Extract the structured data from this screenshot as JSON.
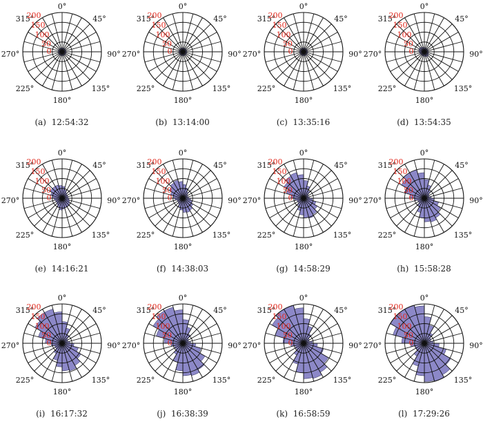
{
  "chart_data": {
    "type": "polar-rose",
    "angle_tick_labels": [
      "0°",
      "45°",
      "90°",
      "135°",
      "180°",
      "225°",
      "270°",
      "315°"
    ],
    "radial_tick_labels": [
      "0",
      "50",
      "100",
      "150",
      "200"
    ],
    "rlim": [
      0,
      200
    ],
    "angle_step_deg": 15,
    "colors": {
      "fill": "#8c88c8",
      "edge": "#2a2a55",
      "grid": "#111111",
      "radial_label": "#e0281c"
    },
    "panels": [
      {
        "label": "(a)",
        "time": "12:54:32",
        "lengths": [
          20,
          20,
          20,
          20,
          20,
          20,
          20,
          20,
          20,
          20,
          20,
          20,
          20,
          20,
          20,
          20,
          20,
          20,
          20,
          20,
          20,
          20,
          20,
          20
        ]
      },
      {
        "label": "(b)",
        "time": "13:14:00",
        "lengths": [
          20,
          20,
          20,
          20,
          20,
          20,
          20,
          20,
          20,
          20,
          20,
          20,
          20,
          20,
          20,
          20,
          20,
          20,
          20,
          20,
          20,
          20,
          20,
          20
        ]
      },
      {
        "label": "(c)",
        "time": "13:35:16",
        "lengths": [
          20,
          20,
          20,
          20,
          20,
          20,
          20,
          20,
          20,
          20,
          20,
          20,
          20,
          20,
          20,
          20,
          20,
          20,
          20,
          20,
          20,
          20,
          20,
          20
        ]
      },
      {
        "label": "(d)",
        "time": "13:54:35",
        "lengths": [
          22,
          20,
          20,
          20,
          20,
          20,
          20,
          22,
          25,
          28,
          26,
          24,
          22,
          22,
          22,
          22,
          24,
          25,
          28,
          30,
          30,
          28,
          25,
          22
        ]
      },
      {
        "label": "(e)",
        "time": "14:16:21",
        "lengths": [
          60,
          45,
          35,
          30,
          30,
          30,
          35,
          40,
          45,
          50,
          50,
          55,
          60,
          50,
          40,
          35,
          35,
          40,
          50,
          60,
          70,
          70,
          70,
          65
        ]
      },
      {
        "label": "(f)",
        "time": "14:38:03",
        "lengths": [
          70,
          55,
          40,
          30,
          25,
          30,
          40,
          50,
          60,
          70,
          75,
          72,
          60,
          50,
          35,
          30,
          30,
          40,
          50,
          65,
          80,
          90,
          95,
          85
        ]
      },
      {
        "label": "(g)",
        "time": "14:58:29",
        "lengths": [
          90,
          65,
          45,
          30,
          25,
          30,
          45,
          65,
          80,
          95,
          105,
          100,
          85,
          65,
          45,
          35,
          35,
          45,
          65,
          90,
          115,
          130,
          135,
          120
        ]
      },
      {
        "label": "(h)",
        "time": "15:58:28",
        "lengths": [
          95,
          70,
          45,
          30,
          25,
          35,
          50,
          75,
          95,
          115,
          125,
          120,
          100,
          75,
          50,
          35,
          35,
          50,
          75,
          105,
          135,
          150,
          150,
          130
        ]
      },
      {
        "label": "(i)",
        "time": "16:17:32",
        "lengths": [
          110,
          80,
          50,
          35,
          30,
          40,
          60,
          85,
          110,
          130,
          145,
          140,
          120,
          90,
          60,
          40,
          40,
          55,
          85,
          125,
          160,
          180,
          180,
          160
        ]
      },
      {
        "label": "(j)",
        "time": "16:38:39",
        "lengths": [
          120,
          85,
          55,
          35,
          30,
          40,
          65,
          95,
          130,
          155,
          170,
          165,
          140,
          100,
          65,
          45,
          45,
          60,
          95,
          140,
          175,
          190,
          190,
          170
        ]
      },
      {
        "label": "(k)",
        "time": "16:58:59",
        "lengths": [
          125,
          90,
          55,
          35,
          30,
          45,
          70,
          105,
          145,
          170,
          185,
          180,
          150,
          110,
          70,
          45,
          45,
          65,
          105,
          150,
          185,
          200,
          200,
          180
        ]
      },
      {
        "label": "(l)",
        "time": "17:29:26",
        "lengths": [
          135,
          95,
          60,
          40,
          35,
          45,
          75,
          115,
          155,
          185,
          200,
          195,
          165,
          120,
          75,
          50,
          50,
          70,
          115,
          165,
          200,
          205,
          205,
          190
        ]
      }
    ]
  }
}
